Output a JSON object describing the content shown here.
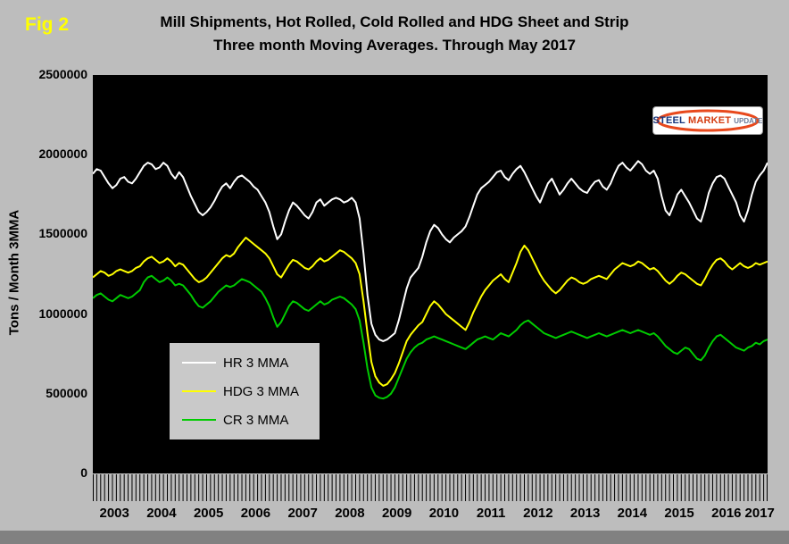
{
  "fig_label": "Fig 2",
  "title": {
    "line1": "Mill Shipments, Hot Rolled, Cold Rolled and HDG Sheet and Strip",
    "line2": "Three month Moving Averages. Through May 2017"
  },
  "y_axis_title": "Tons / Month 3MMA",
  "logo": {
    "steel": "STEEL",
    "market": "MARKET",
    "update": "UPDATE"
  },
  "colors": {
    "page_bg": "#bdbdbd",
    "plot_bg": "#000000",
    "fig_label": "#ffff00",
    "hr": "#ffffff",
    "hdg": "#ffff00",
    "cr": "#00cc00"
  },
  "legend": [
    {
      "label": "HR 3 MMA",
      "color": "#ffffff"
    },
    {
      "label": "HDG 3 MMA",
      "color": "#ffff00"
    },
    {
      "label": "CR 3 MMA",
      "color": "#00cc00"
    }
  ],
  "chart_data": {
    "type": "line",
    "title": "Mill Shipments, Hot Rolled, Cold Rolled and HDG Sheet and Strip. Three month Moving Averages. Through May 2017",
    "xlabel": "",
    "ylabel": "Tons / Month 3MMA",
    "x_start": "2003-01",
    "x_end": "2017-05",
    "x_tick_labels": [
      "2003",
      "2004",
      "2005",
      "2006",
      "2007",
      "2008",
      "2009",
      "2010",
      "2011",
      "2012",
      "2013",
      "2014",
      "2015",
      "2016",
      "2017"
    ],
    "y_ticks": [
      0,
      500000,
      1000000,
      1500000,
      2000000,
      2500000
    ],
    "ylim": [
      0,
      2500000
    ],
    "grid": false,
    "legend_position": "inside-left-bottom",
    "series": [
      {
        "name": "HR 3 MMA",
        "color": "#ffffff",
        "values": [
          1880000,
          1910000,
          1900000,
          1860000,
          1820000,
          1790000,
          1810000,
          1850000,
          1860000,
          1830000,
          1820000,
          1850000,
          1890000,
          1930000,
          1950000,
          1940000,
          1910000,
          1920000,
          1950000,
          1930000,
          1880000,
          1850000,
          1890000,
          1860000,
          1800000,
          1740000,
          1690000,
          1640000,
          1620000,
          1640000,
          1670000,
          1710000,
          1760000,
          1800000,
          1820000,
          1790000,
          1830000,
          1860000,
          1870000,
          1850000,
          1830000,
          1800000,
          1780000,
          1740000,
          1700000,
          1640000,
          1550000,
          1470000,
          1500000,
          1580000,
          1650000,
          1700000,
          1680000,
          1650000,
          1620000,
          1600000,
          1640000,
          1700000,
          1720000,
          1680000,
          1700000,
          1720000,
          1730000,
          1720000,
          1700000,
          1710000,
          1730000,
          1700000,
          1600000,
          1380000,
          1120000,
          940000,
          870000,
          840000,
          830000,
          840000,
          860000,
          880000,
          960000,
          1060000,
          1160000,
          1230000,
          1260000,
          1290000,
          1360000,
          1450000,
          1520000,
          1560000,
          1540000,
          1500000,
          1470000,
          1450000,
          1480000,
          1500000,
          1520000,
          1550000,
          1610000,
          1680000,
          1750000,
          1790000,
          1810000,
          1830000,
          1860000,
          1890000,
          1900000,
          1860000,
          1840000,
          1880000,
          1910000,
          1930000,
          1890000,
          1840000,
          1790000,
          1740000,
          1700000,
          1760000,
          1820000,
          1850000,
          1800000,
          1750000,
          1780000,
          1820000,
          1850000,
          1820000,
          1790000,
          1770000,
          1760000,
          1800000,
          1830000,
          1840000,
          1800000,
          1780000,
          1820000,
          1880000,
          1930000,
          1950000,
          1920000,
          1900000,
          1930000,
          1960000,
          1940000,
          1900000,
          1880000,
          1900000,
          1850000,
          1740000,
          1650000,
          1620000,
          1680000,
          1750000,
          1780000,
          1740000,
          1700000,
          1650000,
          1600000,
          1580000,
          1660000,
          1760000,
          1820000,
          1860000,
          1870000,
          1850000,
          1800000,
          1750000,
          1700000,
          1620000,
          1580000,
          1650000,
          1750000,
          1830000,
          1870000,
          1900000,
          1950000
        ]
      },
      {
        "name": "HDG 3 MMA",
        "color": "#ffff00",
        "values": [
          1230000,
          1250000,
          1270000,
          1260000,
          1240000,
          1250000,
          1270000,
          1280000,
          1270000,
          1260000,
          1270000,
          1290000,
          1300000,
          1330000,
          1350000,
          1360000,
          1340000,
          1320000,
          1330000,
          1350000,
          1330000,
          1300000,
          1320000,
          1310000,
          1280000,
          1250000,
          1220000,
          1200000,
          1210000,
          1230000,
          1260000,
          1290000,
          1320000,
          1350000,
          1370000,
          1360000,
          1380000,
          1420000,
          1450000,
          1480000,
          1460000,
          1440000,
          1420000,
          1400000,
          1380000,
          1350000,
          1300000,
          1250000,
          1230000,
          1270000,
          1310000,
          1340000,
          1330000,
          1310000,
          1290000,
          1280000,
          1300000,
          1330000,
          1350000,
          1330000,
          1340000,
          1360000,
          1380000,
          1400000,
          1390000,
          1370000,
          1350000,
          1320000,
          1250000,
          1080000,
          880000,
          700000,
          610000,
          570000,
          550000,
          560000,
          590000,
          630000,
          690000,
          760000,
          830000,
          870000,
          900000,
          930000,
          950000,
          1000000,
          1050000,
          1080000,
          1060000,
          1030000,
          1000000,
          980000,
          960000,
          940000,
          920000,
          900000,
          950000,
          1010000,
          1060000,
          1110000,
          1150000,
          1180000,
          1210000,
          1230000,
          1250000,
          1220000,
          1200000,
          1260000,
          1320000,
          1390000,
          1430000,
          1400000,
          1350000,
          1300000,
          1250000,
          1210000,
          1180000,
          1150000,
          1130000,
          1150000,
          1180000,
          1210000,
          1230000,
          1220000,
          1200000,
          1190000,
          1200000,
          1220000,
          1230000,
          1240000,
          1230000,
          1220000,
          1250000,
          1280000,
          1300000,
          1320000,
          1310000,
          1300000,
          1310000,
          1330000,
          1320000,
          1300000,
          1280000,
          1290000,
          1270000,
          1240000,
          1210000,
          1190000,
          1210000,
          1240000,
          1260000,
          1250000,
          1230000,
          1210000,
          1190000,
          1180000,
          1220000,
          1270000,
          1310000,
          1340000,
          1350000,
          1330000,
          1300000,
          1280000,
          1300000,
          1320000,
          1300000,
          1290000,
          1300000,
          1320000,
          1310000,
          1320000,
          1330000
        ]
      },
      {
        "name": "CR 3 MMA",
        "color": "#00cc00",
        "values": [
          1100000,
          1120000,
          1130000,
          1110000,
          1090000,
          1080000,
          1100000,
          1120000,
          1110000,
          1100000,
          1110000,
          1130000,
          1150000,
          1200000,
          1230000,
          1240000,
          1220000,
          1200000,
          1210000,
          1230000,
          1210000,
          1180000,
          1190000,
          1180000,
          1150000,
          1120000,
          1080000,
          1050000,
          1040000,
          1060000,
          1080000,
          1110000,
          1140000,
          1160000,
          1180000,
          1170000,
          1180000,
          1200000,
          1220000,
          1210000,
          1200000,
          1180000,
          1160000,
          1140000,
          1100000,
          1050000,
          980000,
          920000,
          950000,
          1000000,
          1050000,
          1080000,
          1070000,
          1050000,
          1030000,
          1020000,
          1040000,
          1060000,
          1080000,
          1060000,
          1070000,
          1090000,
          1100000,
          1110000,
          1100000,
          1080000,
          1060000,
          1030000,
          960000,
          820000,
          660000,
          540000,
          490000,
          475000,
          470000,
          480000,
          500000,
          540000,
          600000,
          660000,
          720000,
          760000,
          790000,
          810000,
          820000,
          840000,
          850000,
          860000,
          850000,
          840000,
          830000,
          820000,
          810000,
          800000,
          790000,
          780000,
          800000,
          820000,
          840000,
          850000,
          860000,
          850000,
          840000,
          860000,
          880000,
          870000,
          860000,
          880000,
          900000,
          930000,
          950000,
          960000,
          940000,
          920000,
          900000,
          880000,
          870000,
          860000,
          850000,
          860000,
          870000,
          880000,
          890000,
          880000,
          870000,
          860000,
          850000,
          860000,
          870000,
          880000,
          870000,
          860000,
          870000,
          880000,
          890000,
          900000,
          890000,
          880000,
          890000,
          900000,
          890000,
          880000,
          870000,
          880000,
          860000,
          830000,
          800000,
          780000,
          760000,
          750000,
          770000,
          790000,
          780000,
          750000,
          720000,
          710000,
          740000,
          790000,
          830000,
          860000,
          870000,
          850000,
          830000,
          810000,
          790000,
          780000,
          770000,
          790000,
          800000,
          820000,
          810000,
          830000,
          840000
        ]
      }
    ]
  }
}
